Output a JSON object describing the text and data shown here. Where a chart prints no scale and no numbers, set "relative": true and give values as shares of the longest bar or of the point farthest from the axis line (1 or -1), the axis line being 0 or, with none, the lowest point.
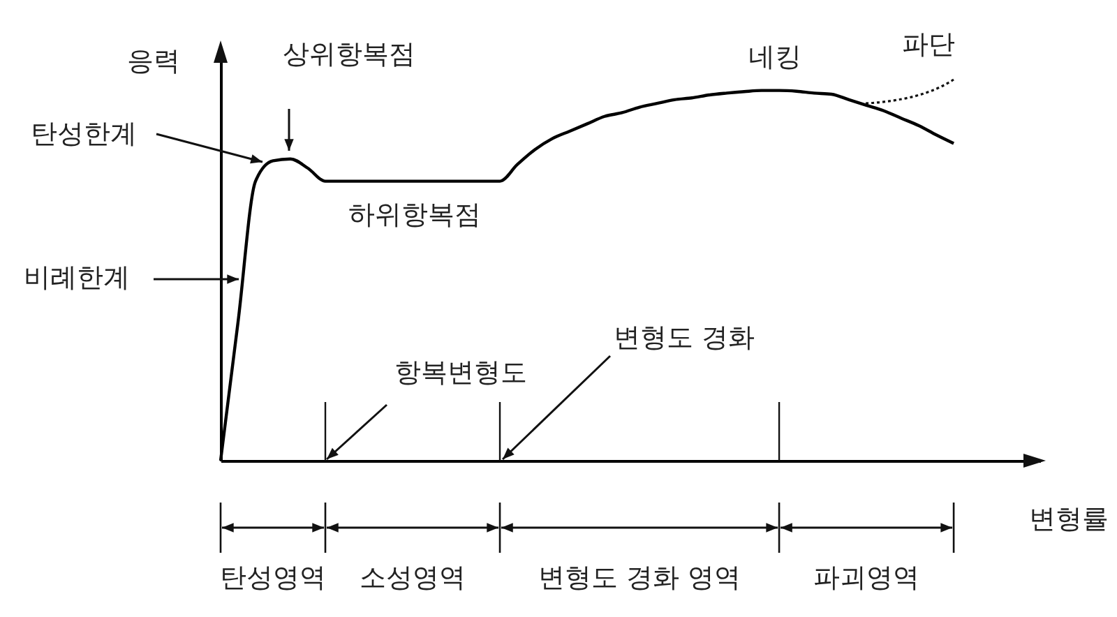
{
  "chart_data": {
    "type": "line",
    "relative": true,
    "xlabel": "변형률",
    "ylabel": "응력",
    "categories": [
      null,
      null,
      null,
      null,
      null,
      null,
      null,
      null,
      null,
      null,
      null,
      null,
      null,
      null,
      null,
      null,
      null,
      null,
      null,
      null,
      null,
      null,
      null,
      null,
      null,
      null,
      null,
      null,
      null,
      null,
      null,
      null,
      null,
      null,
      null,
      null,
      null,
      null,
      null,
      null,
      null,
      null,
      null
    ],
    "series": [
      {
        "color": "#000000",
        "values": [
          0,
          0.375,
          0.755,
          0.81,
          0.815,
          0.79,
          0.755,
          0.755,
          0.755,
          0.755,
          0.755,
          0.755,
          0.755,
          0.755,
          0.755,
          0.755,
          0.755,
          0.8,
          0.84,
          0.87,
          0.89,
          0.91,
          0.93,
          0.94,
          0.955,
          0.965,
          0.975,
          0.98,
          0.988,
          0.993,
          0.997,
          1,
          1,
          0.998,
          0.993,
          0.99,
          0.975,
          0.96,
          0.945,
          0.925,
          0.905,
          0.88,
          0.857
        ]
      }
    ],
    "annotations": [
      "탄성한계",
      "상위항복점",
      "하위항복점",
      "비례한계",
      "네킹",
      "파단",
      "항복변형도",
      "변형도 경화",
      "탄성영역",
      "소성영역",
      "변형도 경화 영역",
      "파괴영역"
    ]
  }
}
